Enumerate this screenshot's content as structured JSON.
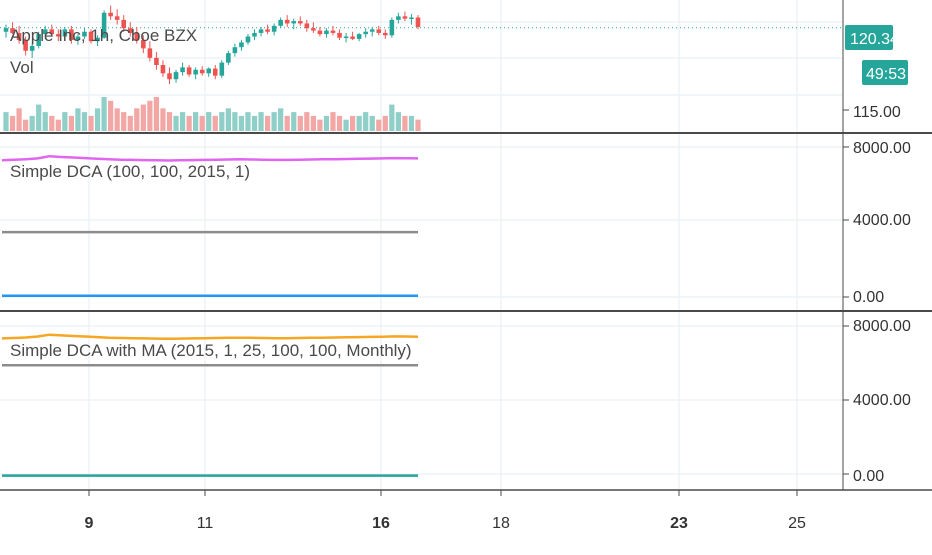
{
  "colors": {
    "up": "#26a69a",
    "down": "#ef5350",
    "volume_up": "#8fcfc7",
    "volume_down": "#f2a7a5",
    "grid": "#e6edf3",
    "separator": "#4a4a4a",
    "badge": "#26a69a",
    "dca_purple": "#e066ef",
    "dca_gray": "#8c8c8c",
    "dca_blue": "#2196f3",
    "ma_orange": "#f5a623",
    "ma_gray": "#8c8c8c",
    "ma_green": "#26a69a"
  },
  "chart_data": [
    {
      "type": "candlestick",
      "title": "Apple Inc, 1h, Cboe BZX",
      "subtitle": "Vol",
      "price_scale_labels": [
        "115.00"
      ],
      "last_price": "120.34",
      "countdown": "49:53",
      "ylim": [
        114.0,
        122.0
      ],
      "candles": [
        [
          120.0,
          120.6,
          119.5,
          120.3
        ],
        [
          120.3,
          120.8,
          119.8,
          119.9
        ],
        [
          119.9,
          120.5,
          119.0,
          119.3
        ],
        [
          119.3,
          119.6,
          118.0,
          118.4
        ],
        [
          118.4,
          119.0,
          117.8,
          118.8
        ],
        [
          118.8,
          120.0,
          118.6,
          119.8
        ],
        [
          119.8,
          120.5,
          119.4,
          120.2
        ],
        [
          120.2,
          120.6,
          119.6,
          119.8
        ],
        [
          119.8,
          120.2,
          119.2,
          119.6
        ],
        [
          119.6,
          120.4,
          119.4,
          120.2
        ],
        [
          120.2,
          120.5,
          119.0,
          119.3
        ],
        [
          119.3,
          119.8,
          118.9,
          119.6
        ],
        [
          119.6,
          120.3,
          119.4,
          120.0
        ],
        [
          120.0,
          120.2,
          119.0,
          119.2
        ],
        [
          119.2,
          119.7,
          118.8,
          119.5
        ],
        [
          119.5,
          121.8,
          119.4,
          121.6
        ],
        [
          121.6,
          122.2,
          121.0,
          121.3
        ],
        [
          121.3,
          121.9,
          120.6,
          121.0
        ],
        [
          121.0,
          121.4,
          120.0,
          120.3
        ],
        [
          120.3,
          120.8,
          119.6,
          119.9
        ],
        [
          119.9,
          120.4,
          119.0,
          119.3
        ],
        [
          119.3,
          119.7,
          118.2,
          118.6
        ],
        [
          118.6,
          119.2,
          117.5,
          117.8
        ],
        [
          117.8,
          118.3,
          116.8,
          117.2
        ],
        [
          117.2,
          117.6,
          116.2,
          116.5
        ],
        [
          116.5,
          117.0,
          115.6,
          116.0
        ],
        [
          116.0,
          116.8,
          115.7,
          116.6
        ],
        [
          116.6,
          117.4,
          116.3,
          117.0
        ],
        [
          117.0,
          117.2,
          116.2,
          116.4
        ],
        [
          116.4,
          117.0,
          116.0,
          116.8
        ],
        [
          116.8,
          117.1,
          116.3,
          116.5
        ],
        [
          116.5,
          117.0,
          116.2,
          116.9
        ],
        [
          116.9,
          117.2,
          116.0,
          116.3
        ],
        [
          116.3,
          117.6,
          116.1,
          117.4
        ],
        [
          117.4,
          118.4,
          117.2,
          118.2
        ],
        [
          118.2,
          119.0,
          117.9,
          118.7
        ],
        [
          118.7,
          119.3,
          118.4,
          119.1
        ],
        [
          119.1,
          119.8,
          118.9,
          119.6
        ],
        [
          119.6,
          120.2,
          119.3,
          119.9
        ],
        [
          119.9,
          120.4,
          119.6,
          120.2
        ],
        [
          120.2,
          120.6,
          119.8,
          120.0
        ],
        [
          120.0,
          120.7,
          119.7,
          120.5
        ],
        [
          120.5,
          121.2,
          120.3,
          121.0
        ],
        [
          121.0,
          121.4,
          120.4,
          120.7
        ],
        [
          120.7,
          121.1,
          120.2,
          120.9
        ],
        [
          120.9,
          121.3,
          120.5,
          120.7
        ],
        [
          120.7,
          121.0,
          120.0,
          120.3
        ],
        [
          120.3,
          120.8,
          119.9,
          120.1
        ],
        [
          120.1,
          120.4,
          119.6,
          119.8
        ],
        [
          119.8,
          120.3,
          119.5,
          120.1
        ],
        [
          120.1,
          120.5,
          119.7,
          119.9
        ],
        [
          119.9,
          120.2,
          119.3,
          119.5
        ],
        [
          119.5,
          119.9,
          119.1,
          119.6
        ],
        [
          119.6,
          120.0,
          119.3,
          119.4
        ],
        [
          119.4,
          119.9,
          119.2,
          119.8
        ],
        [
          119.8,
          120.3,
          119.5,
          120.0
        ],
        [
          120.0,
          120.4,
          119.6,
          120.2
        ],
        [
          120.2,
          120.5,
          119.7,
          119.9
        ],
        [
          119.9,
          120.2,
          119.4,
          119.7
        ],
        [
          119.7,
          121.2,
          119.5,
          121.0
        ],
        [
          121.0,
          121.6,
          120.7,
          121.3
        ],
        [
          121.3,
          121.7,
          120.9,
          121.1
        ],
        [
          121.1,
          121.5,
          120.6,
          121.2
        ],
        [
          121.2,
          121.4,
          120.2,
          120.4
        ]
      ],
      "volume": [
        5,
        4,
        6,
        3,
        4,
        7,
        5,
        4,
        3,
        5,
        4,
        6,
        5,
        4,
        6,
        9,
        8,
        6,
        5,
        4,
        6,
        7,
        8,
        9,
        6,
        5,
        4,
        5,
        4,
        5,
        4,
        5,
        4,
        5,
        6,
        5,
        4,
        5,
        4,
        5,
        4,
        5,
        6,
        4,
        5,
        4,
        5,
        4,
        3,
        4,
        5,
        4,
        3,
        4,
        4,
        5,
        4,
        3,
        4,
        7,
        5,
        4,
        4,
        3
      ]
    },
    {
      "type": "line",
      "title": "Simple DCA (100, 100, 2015, 1)",
      "ylim": [
        -400,
        8500
      ],
      "yticks": [
        "8000.00",
        "4000.00",
        "0.00"
      ],
      "series": [
        {
          "color": "#e066ef",
          "values": [
            7400,
            7430,
            7460,
            7500,
            7620,
            7580,
            7550,
            7520,
            7480,
            7450,
            7430,
            7420,
            7410,
            7400,
            7390,
            7400,
            7410,
            7420,
            7430,
            7440,
            7450,
            7440,
            7430,
            7420,
            7420,
            7430,
            7440,
            7450,
            7460,
            7470,
            7480,
            7490,
            7500,
            7520,
            7510,
            7500
          ]
        },
        {
          "color": "#8c8c8c",
          "values": [
            3500,
            3500,
            3500,
            3500,
            3500,
            3500,
            3500,
            3500,
            3500,
            3500,
            3500,
            3500,
            3500,
            3500,
            3500,
            3500,
            3500,
            3500,
            3500,
            3500,
            3500,
            3500,
            3500,
            3500,
            3500,
            3500,
            3500,
            3500,
            3500,
            3500,
            3500,
            3500,
            3500,
            3500,
            3500,
            3500
          ]
        },
        {
          "color": "#2196f3",
          "values": [
            50,
            50,
            50,
            50,
            50,
            50,
            50,
            50,
            50,
            50,
            50,
            50,
            50,
            50,
            50,
            50,
            50,
            50,
            50,
            50,
            50,
            50,
            50,
            50,
            50,
            50,
            50,
            50,
            50,
            50,
            50,
            50,
            50,
            50,
            50,
            50
          ]
        }
      ]
    },
    {
      "type": "line",
      "title": "Simple DCA with MA (2015, 1, 25, 100, 100, Monthly)",
      "ylim": [
        -400,
        8500
      ],
      "yticks": [
        "8000.00",
        "4000.00",
        "0.00"
      ],
      "series": [
        {
          "color": "#f5a623",
          "values": [
            7400,
            7420,
            7450,
            7500,
            7600,
            7560,
            7530,
            7500,
            7470,
            7440,
            7420,
            7410,
            7400,
            7390,
            7380,
            7390,
            7400,
            7410,
            7420,
            7430,
            7440,
            7430,
            7420,
            7410,
            7410,
            7420,
            7430,
            7440,
            7450,
            7460,
            7470,
            7480,
            7490,
            7510,
            7500,
            7490
          ]
        },
        {
          "color": "#8c8c8c",
          "values": [
            5950,
            5950,
            5950,
            5950,
            5950,
            5950,
            5950,
            5950,
            5950,
            5950,
            5950,
            5950,
            5950,
            5950,
            5950,
            5950,
            5950,
            5950,
            5950,
            5950,
            5950,
            5950,
            5950,
            5950,
            5950,
            5950,
            5950,
            5950,
            5950,
            5950,
            5950,
            5950,
            5950,
            5950,
            5950,
            5950
          ]
        },
        {
          "color": "#26a69a",
          "values": [
            0,
            0,
            0,
            0,
            0,
            0,
            0,
            0,
            0,
            0,
            0,
            0,
            0,
            0,
            0,
            0,
            0,
            0,
            0,
            0,
            0,
            0,
            0,
            0,
            0,
            0,
            0,
            0,
            0,
            0,
            0,
            0,
            0,
            0,
            0,
            0
          ]
        }
      ]
    }
  ],
  "time_axis": {
    "labels": [
      {
        "text": "9",
        "bold": true
      },
      {
        "text": "11",
        "bold": false
      },
      {
        "text": "16",
        "bold": true
      },
      {
        "text": "18",
        "bold": false
      },
      {
        "text": "23",
        "bold": true
      },
      {
        "text": "25",
        "bold": false
      }
    ]
  }
}
